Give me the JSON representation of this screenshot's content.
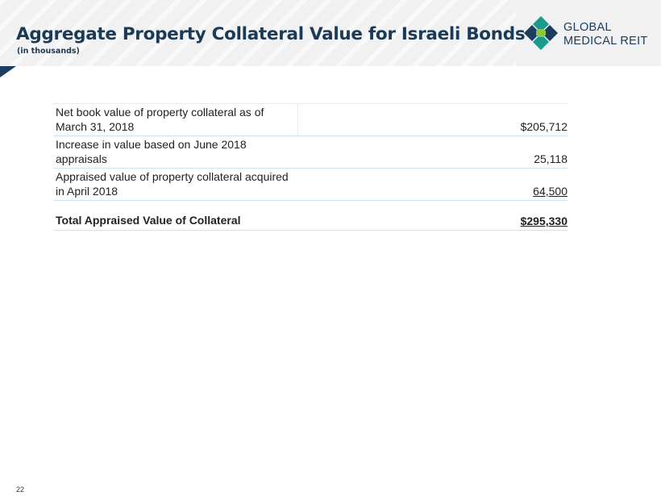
{
  "header": {
    "title": "Aggregate Property Collateral Value for Israeli Bonds",
    "subtitle": "(in thousands)"
  },
  "logo": {
    "line1": "GLOBAL",
    "line2": "MEDICAL REIT",
    "colors": {
      "teal": "#1a9b8e",
      "navy": "#1b3e60",
      "green": "#8dc63f"
    }
  },
  "table": {
    "rows": [
      {
        "label": "Net book value of property collateral as of March 31, 2018",
        "value": "$205,712"
      },
      {
        "label": "Increase in value based on June 2018 appraisals",
        "value": "25,118"
      },
      {
        "label": "Appraised value of property collateral acquired in April 2018",
        "value": "64,500"
      }
    ],
    "total": {
      "label": "Total Appraised Value of Collateral",
      "value": "$295,330"
    }
  },
  "footer": {
    "page_number": "22"
  },
  "colors": {
    "title": "#1a3a57",
    "header_bg": "#f1f1f1",
    "rule": "#cfe0ee"
  }
}
